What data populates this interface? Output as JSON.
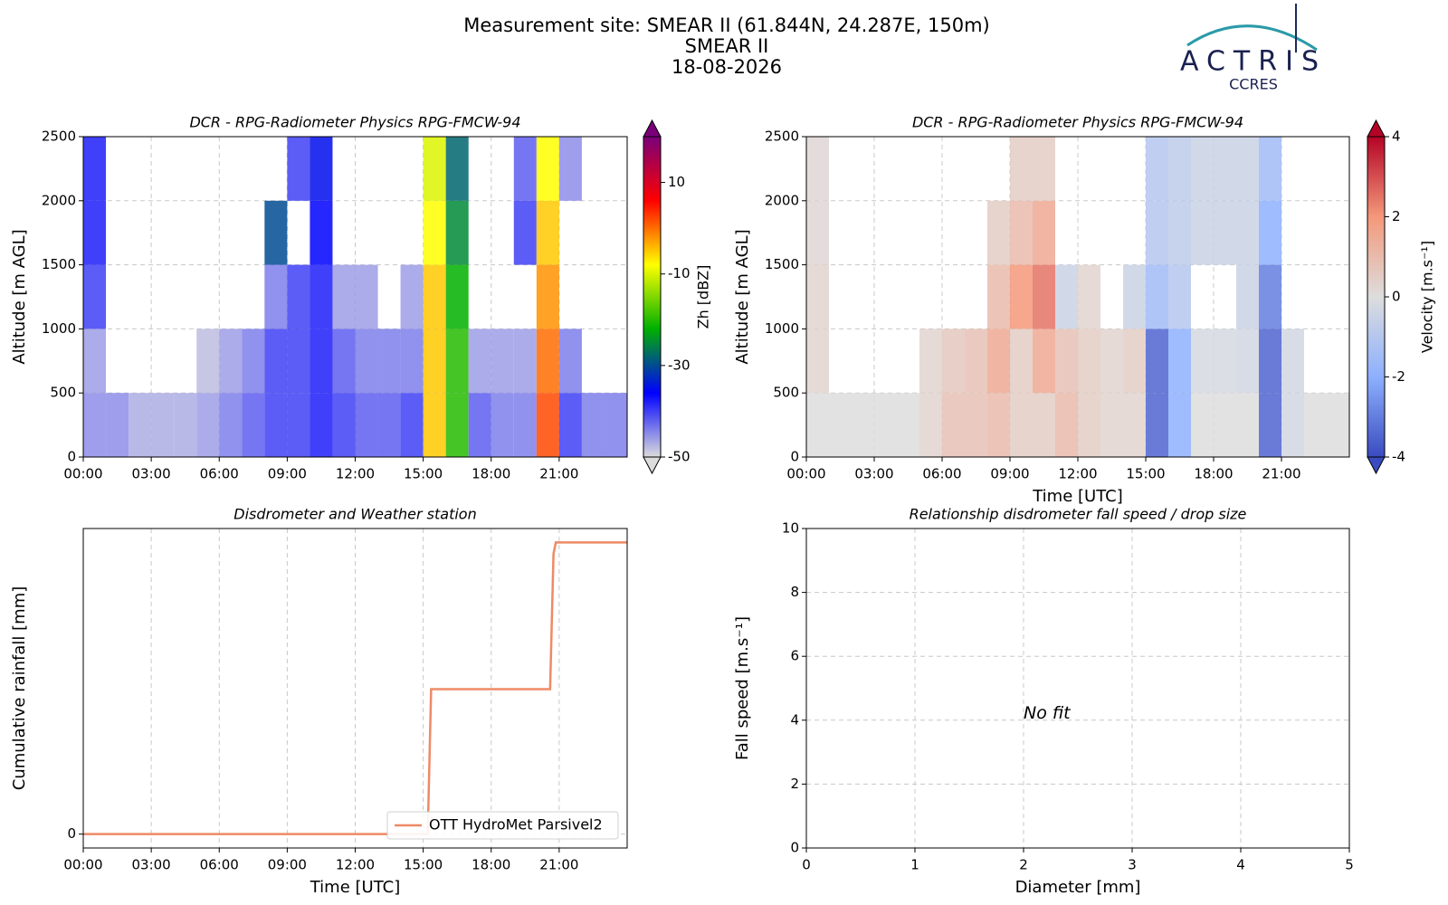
{
  "header": {
    "title": [
      "Measurement site: SMEAR II (61.844N, 24.287E, 150m)",
      "SMEAR II",
      "18-08-2026"
    ],
    "logo": "ACTRIS",
    "logo_sub": "CCRES"
  },
  "chart_data": [
    {
      "type": "heatmap",
      "title": "DCR - RPG-Radiometer Physics RPG-FMCW-94",
      "ylabel": "Altitude [m AGL]",
      "x": [
        0,
        1,
        2,
        3,
        4,
        5,
        6,
        7,
        8,
        9,
        10,
        11,
        12,
        13,
        14,
        15,
        16,
        17,
        18,
        19,
        20,
        21,
        22,
        23
      ],
      "y": [
        0,
        500,
        1000,
        1500,
        2000
      ],
      "z": [
        [
          -45,
          -45,
          -47,
          -47,
          -47,
          -46,
          -44,
          -42,
          -40,
          -40,
          -38,
          -40,
          -42,
          -42,
          -40,
          -5,
          -20,
          -42,
          -44,
          -44,
          2,
          -40,
          -44,
          -44
        ],
        [
          -46,
          null,
          null,
          null,
          null,
          -48,
          -46,
          -44,
          -40,
          -40,
          -38,
          -42,
          -44,
          -44,
          -44,
          -5,
          -20,
          -46,
          -46,
          -46,
          0,
          -44,
          null,
          null
        ],
        [
          -40,
          null,
          null,
          null,
          null,
          null,
          null,
          null,
          -44,
          -40,
          -38,
          -46,
          -46,
          null,
          -46,
          -5,
          -22,
          null,
          null,
          null,
          -2,
          null,
          null,
          null
        ],
        [
          -38,
          null,
          null,
          null,
          null,
          null,
          null,
          null,
          -30,
          null,
          -36,
          null,
          null,
          null,
          null,
          -8,
          -25,
          null,
          null,
          -40,
          -5,
          null,
          null,
          null
        ],
        [
          -38,
          null,
          null,
          null,
          null,
          null,
          null,
          null,
          null,
          -40,
          -35,
          null,
          null,
          null,
          null,
          -10,
          -28,
          null,
          null,
          -42,
          -8,
          -45,
          null,
          null
        ]
      ],
      "xlim": [
        0,
        24
      ],
      "ylim": [
        0,
        2500
      ],
      "xticks": [
        {
          "value": 0,
          "label": "00:00"
        },
        {
          "value": 3,
          "label": "03:00"
        },
        {
          "value": 6,
          "label": "06:00"
        },
        {
          "value": 9,
          "label": "09:00"
        },
        {
          "value": 12,
          "label": "12:00"
        },
        {
          "value": 15,
          "label": "15:00"
        },
        {
          "value": 18,
          "label": "18:00"
        },
        {
          "value": 21,
          "label": "21:00"
        }
      ],
      "yticks": [
        0,
        500,
        1000,
        1500,
        2000,
        2500
      ],
      "grid": true,
      "colorbar": {
        "label": "Zh [dBZ]",
        "zlim": [
          -50,
          20
        ],
        "ticks": [
          -50,
          -30,
          -10,
          10
        ],
        "colormap": [
          "#dcdcdc",
          "#0000ff",
          "#00b000",
          "#ffff00",
          "#ff0000",
          "#7a007a"
        ]
      }
    },
    {
      "type": "heatmap",
      "title": "DCR - RPG-Radiometer Physics RPG-FMCW-94",
      "ylabel": "Altitude [m AGL]",
      "xlabel": "Time [UTC]",
      "x": [
        0,
        1,
        2,
        3,
        4,
        5,
        6,
        7,
        8,
        9,
        10,
        11,
        12,
        13,
        14,
        15,
        16,
        17,
        18,
        19,
        20,
        21,
        22,
        23
      ],
      "y": [
        0,
        500,
        1000,
        1500,
        2000
      ],
      "z": [
        [
          0,
          0,
          0,
          0,
          0,
          0.3,
          0.8,
          0.8,
          1,
          0.5,
          0.5,
          1,
          0.5,
          0.3,
          0.3,
          -3.5,
          -2,
          0,
          0,
          0,
          -3.5,
          -0.3,
          0,
          0
        ],
        [
          0.3,
          null,
          null,
          null,
          null,
          0.3,
          0.6,
          0.8,
          1.5,
          0.5,
          1.5,
          0.8,
          0.5,
          0.3,
          0.5,
          -3.5,
          -2,
          -0.2,
          -0.2,
          -0.3,
          -3.5,
          -0.3,
          null,
          null
        ],
        [
          0.3,
          null,
          null,
          null,
          null,
          null,
          null,
          null,
          1,
          2,
          2.5,
          -0.5,
          0.3,
          null,
          -0.5,
          -1.5,
          -1,
          null,
          null,
          -0.5,
          -3,
          null,
          null,
          null
        ],
        [
          0.2,
          null,
          null,
          null,
          null,
          null,
          null,
          null,
          0.5,
          1,
          1.5,
          null,
          null,
          null,
          null,
          -1,
          -0.8,
          -0.5,
          -0.5,
          -0.5,
          -2,
          null,
          null,
          null
        ],
        [
          0.2,
          null,
          null,
          null,
          null,
          null,
          null,
          null,
          null,
          0.5,
          0.5,
          null,
          null,
          null,
          null,
          -1,
          -0.8,
          -0.5,
          -0.5,
          -0.5,
          -1.5,
          null,
          null,
          null
        ]
      ],
      "xlim": [
        0,
        24
      ],
      "ylim": [
        0,
        2500
      ],
      "xticks": [
        {
          "value": 0,
          "label": "00:00"
        },
        {
          "value": 3,
          "label": "03:00"
        },
        {
          "value": 6,
          "label": "06:00"
        },
        {
          "value": 9,
          "label": "09:00"
        },
        {
          "value": 12,
          "label": "12:00"
        },
        {
          "value": 15,
          "label": "15:00"
        },
        {
          "value": 18,
          "label": "18:00"
        },
        {
          "value": 21,
          "label": "21:00"
        }
      ],
      "yticks": [
        0,
        500,
        1000,
        1500,
        2000,
        2500
      ],
      "grid": true,
      "colorbar": {
        "label": "Velocity [m.s⁻¹]",
        "zlim": [
          -4,
          4
        ],
        "ticks": [
          -4,
          -2,
          0,
          2,
          4
        ],
        "colormap": [
          "#3a4bc0",
          "#8db0fe",
          "#dddddd",
          "#f4987a",
          "#b40426"
        ]
      }
    },
    {
      "type": "line",
      "title": "Disdrometer and Weather station",
      "ylabel": "Cumulative rainfall [mm]",
      "xlabel": "Time [UTC]",
      "series": [
        {
          "name": "OTT HydroMet Parsivel2",
          "color": "#ee8a66",
          "x": [
            0,
            15.2,
            15.35,
            20.6,
            20.75,
            20.85,
            24
          ],
          "values": [
            0,
            0,
            4.6,
            4.6,
            8.9,
            9.26,
            9.26
          ]
        }
      ],
      "xlim": [
        0,
        24
      ],
      "ylim": [
        -0.44,
        9.7
      ],
      "xticks": [
        {
          "value": 0,
          "label": "00:00"
        },
        {
          "value": 3,
          "label": "03:00"
        },
        {
          "value": 6,
          "label": "06:00"
        },
        {
          "value": 9,
          "label": "09:00"
        },
        {
          "value": 12,
          "label": "12:00"
        },
        {
          "value": 15,
          "label": "15:00"
        },
        {
          "value": 18,
          "label": "18:00"
        },
        {
          "value": 21,
          "label": "21:00"
        }
      ],
      "yticks": [
        0
      ],
      "grid": true,
      "legend": "lower right"
    },
    {
      "type": "scatter",
      "title": "Relationship disdrometer fall speed / drop size",
      "ylabel": "Fall speed [m.s⁻¹]",
      "xlabel": "Diameter [mm]",
      "annotation": "No fit",
      "xlim": [
        0,
        5
      ],
      "ylim": [
        0,
        10
      ],
      "xticks": [
        0,
        1,
        2,
        3,
        4,
        5
      ],
      "yticks": [
        0,
        2,
        4,
        6,
        8,
        10
      ],
      "grid": true
    }
  ]
}
